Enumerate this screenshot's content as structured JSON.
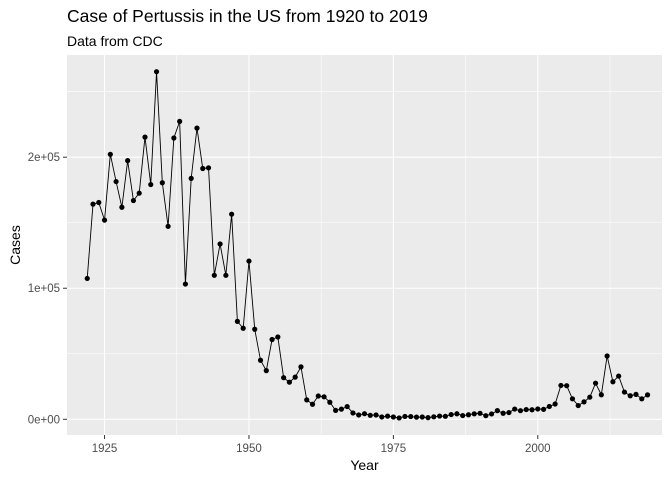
{
  "chart_data": {
    "type": "line",
    "title": "Case of Pertussis in the US from 1920 to 2019",
    "subtitle": "Data from CDC",
    "xlabel": "Year",
    "ylabel": "Cases",
    "xlim": [
      1918.5,
      2021.5
    ],
    "ylim": [
      -12000,
      278000
    ],
    "x_ticks": [
      1925,
      1950,
      1975,
      2000
    ],
    "x_tick_labels": [
      "1925",
      "1950",
      "1975",
      "2000"
    ],
    "y_ticks": [
      0,
      100000,
      200000
    ],
    "y_tick_labels": [
      "0e+00",
      "1e+05",
      "2e+05"
    ],
    "grid": true,
    "legend": "none",
    "colors": {
      "panel": "#ebebeb",
      "grid": "#ffffff",
      "line": "#000000",
      "point": "#000000",
      "tick": "#333333"
    },
    "series": [
      {
        "x": [
          1922,
          1923,
          1924,
          1925,
          1926,
          1927,
          1928,
          1929,
          1930,
          1931,
          1932,
          1933,
          1934,
          1935,
          1936,
          1937,
          1938,
          1939,
          1940,
          1941,
          1942,
          1943,
          1944,
          1945,
          1946,
          1947,
          1948,
          1949,
          1950,
          1951,
          1952,
          1953,
          1954,
          1955,
          1956,
          1957,
          1958,
          1959,
          1960,
          1961,
          1962,
          1963,
          1964,
          1965,
          1966,
          1967,
          1968,
          1969,
          1970,
          1971,
          1972,
          1973,
          1974,
          1975,
          1976,
          1977,
          1978,
          1979,
          1980,
          1981,
          1982,
          1983,
          1984,
          1985,
          1986,
          1987,
          1988,
          1989,
          1990,
          1991,
          1992,
          1993,
          1994,
          1995,
          1996,
          1997,
          1998,
          1999,
          2000,
          2001,
          2002,
          2003,
          2004,
          2005,
          2006,
          2007,
          2008,
          2009,
          2010,
          2011,
          2012,
          2013,
          2014,
          2015,
          2016,
          2017,
          2018,
          2019
        ],
        "y": [
          107473,
          164191,
          165418,
          152003,
          202210,
          181411,
          161799,
          197371,
          166914,
          172559,
          215343,
          179135,
          265269,
          180518,
          147237,
          214652,
          227319,
          103188,
          183866,
          222202,
          191383,
          191890,
          109873,
          133792,
          109860,
          156517,
          74715,
          69479,
          120718,
          68687,
          45030,
          37129,
          60886,
          62786,
          31732,
          28295,
          32148,
          40005,
          14809,
          11468,
          17749,
          17135,
          13005,
          6799,
          7717,
          9718,
          4810,
          3285,
          4249,
          3036,
          3287,
          1759,
          2402,
          1738,
          1010,
          2177,
          2063,
          1623,
          1730,
          1248,
          1895,
          2463,
          2276,
          3589,
          4195,
          2823,
          3450,
          4157,
          4570,
          2719,
          4083,
          6586,
          4617,
          5137,
          7796,
          6564,
          7405,
          7288,
          7867,
          7580,
          9771,
          11647,
          25827,
          25616,
          15632,
          10454,
          13278,
          16858,
          27550,
          18719,
          48277,
          28639,
          32971,
          20762,
          17972,
          18975,
          15609,
          18617
        ]
      }
    ]
  }
}
